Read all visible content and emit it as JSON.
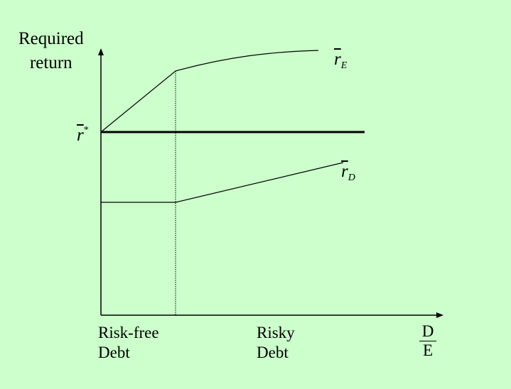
{
  "diagram": {
    "y_axis_label_line1": "Required",
    "y_axis_label_line2": "return",
    "r_star": {
      "base": "r",
      "sup": "*"
    },
    "r_equity": {
      "base": "r",
      "sub": "E"
    },
    "r_debt": {
      "base": "r",
      "sub": "D"
    },
    "x_region_1_line1": "Risk-free",
    "x_region_1_line2": "Debt",
    "x_region_2_line1": "Risky",
    "x_region_2_line2": "Debt",
    "x_axis_numerator": "D",
    "x_axis_denominator": "E"
  }
}
